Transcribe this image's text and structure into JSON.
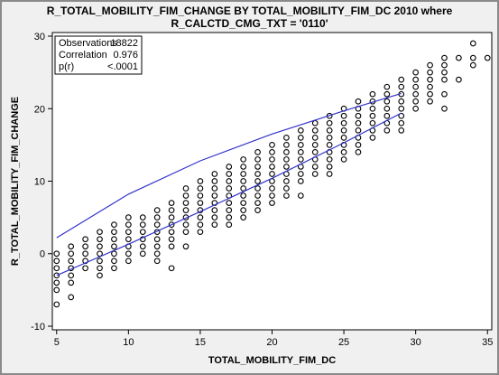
{
  "chart_data": {
    "type": "scatter",
    "title": "R_TOTAL_MOBILITY_FIM_CHANGE BY TOTAL_MOBILITY_FIM_DC 2010 where",
    "subtitle": "R_CALCTD_CMG_TXT = '0110'",
    "xlabel": "TOTAL_MOBILITY_FIM_DC",
    "ylabel": "R_TOTAL_MOBILITY_FIM_CHANGE",
    "xlim": [
      4.7,
      35.3
    ],
    "ylim": [
      -10.5,
      30.5
    ],
    "xticks": [
      5,
      10,
      15,
      20,
      25,
      30,
      35
    ],
    "yticks": [
      -10,
      0,
      10,
      20,
      30
    ],
    "stats": [
      {
        "label": "Observations",
        "value": "18822"
      },
      {
        "label": "Correlation",
        "value": "0.976"
      },
      {
        "label": "p(r)",
        "value": "<.0001"
      }
    ],
    "points_by_x": [
      {
        "x": 5,
        "y": [
          -7,
          -5,
          -4,
          -3,
          -2,
          -1,
          0
        ]
      },
      {
        "x": 6,
        "y": [
          -6,
          -4,
          -3,
          -2,
          -1,
          0,
          1
        ]
      },
      {
        "x": 7,
        "y": [
          -2,
          -1,
          0,
          1,
          2
        ]
      },
      {
        "x": 8,
        "y": [
          -3,
          -2,
          -1,
          0,
          1,
          2,
          3
        ]
      },
      {
        "x": 9,
        "y": [
          -2,
          -1,
          0,
          1,
          2,
          3,
          4
        ]
      },
      {
        "x": 10,
        "y": [
          -1,
          0,
          1,
          2,
          3,
          4,
          5
        ]
      },
      {
        "x": 11,
        "y": [
          0,
          1,
          2,
          3,
          4,
          5
        ]
      },
      {
        "x": 12,
        "y": [
          -1,
          0,
          1,
          2,
          3,
          4,
          5,
          6
        ]
      },
      {
        "x": 13,
        "y": [
          -2,
          1,
          2,
          3,
          4,
          5,
          6,
          7
        ]
      },
      {
        "x": 14,
        "y": [
          1,
          3,
          4,
          5,
          6,
          7,
          8,
          9
        ]
      },
      {
        "x": 15,
        "y": [
          3,
          4,
          5,
          6,
          7,
          8,
          9,
          10
        ]
      },
      {
        "x": 16,
        "y": [
          4,
          5,
          6,
          7,
          8,
          9,
          10,
          11
        ]
      },
      {
        "x": 17,
        "y": [
          4,
          5,
          6,
          7,
          8,
          9,
          10,
          11,
          12
        ]
      },
      {
        "x": 18,
        "y": [
          5,
          6,
          7,
          8,
          9,
          10,
          11,
          12,
          13
        ]
      },
      {
        "x": 19,
        "y": [
          6,
          7,
          8,
          9,
          10,
          11,
          12,
          13,
          14
        ]
      },
      {
        "x": 20,
        "y": [
          7,
          8,
          9,
          10,
          11,
          12,
          13,
          14,
          15
        ]
      },
      {
        "x": 21,
        "y": [
          8,
          9,
          10,
          11,
          12,
          13,
          14,
          15,
          16
        ]
      },
      {
        "x": 22,
        "y": [
          8,
          10,
          11,
          12,
          13,
          14,
          15,
          16,
          17
        ]
      },
      {
        "x": 23,
        "y": [
          11,
          12,
          13,
          14,
          15,
          16,
          17,
          18
        ]
      },
      {
        "x": 24,
        "y": [
          11,
          12,
          13,
          14,
          15,
          16,
          17,
          18,
          19
        ]
      },
      {
        "x": 25,
        "y": [
          13,
          14,
          15,
          16,
          17,
          18,
          19,
          20
        ]
      },
      {
        "x": 26,
        "y": [
          14,
          15,
          16,
          17,
          18,
          19,
          20,
          21
        ]
      },
      {
        "x": 27,
        "y": [
          16,
          17,
          18,
          19,
          20,
          21,
          22
        ]
      },
      {
        "x": 28,
        "y": [
          17,
          18,
          19,
          20,
          21,
          22,
          23
        ]
      },
      {
        "x": 29,
        "y": [
          17,
          18,
          19,
          20,
          21,
          22,
          23,
          24
        ]
      },
      {
        "x": 30,
        "y": [
          20,
          21,
          22,
          23,
          24,
          25
        ]
      },
      {
        "x": 31,
        "y": [
          21,
          22,
          23,
          24,
          25,
          26
        ]
      },
      {
        "x": 32,
        "y": [
          20,
          22,
          24,
          25,
          26,
          27
        ]
      },
      {
        "x": 33,
        "y": [
          24,
          27
        ]
      },
      {
        "x": 34,
        "y": [
          26,
          27,
          29
        ]
      },
      {
        "x": 35,
        "y": [
          27
        ]
      }
    ],
    "series": [
      {
        "type": "line",
        "x": [
          5,
          10,
          15,
          20,
          25,
          29
        ],
        "y": [
          -3,
          1.3,
          5.8,
          10.4,
          15.3,
          19.4
        ]
      },
      {
        "type": "line",
        "x": [
          5,
          10,
          15,
          20,
          25,
          29
        ],
        "y": [
          2.2,
          8.2,
          12.8,
          16.5,
          19.7,
          22.1
        ]
      }
    ],
    "colors": {
      "line": "#3333cc",
      "marker": "#000000",
      "plot_background": "#ffffff",
      "page_background": "#f0f0f0"
    },
    "grid": false,
    "stats_box_position": "top-left"
  }
}
